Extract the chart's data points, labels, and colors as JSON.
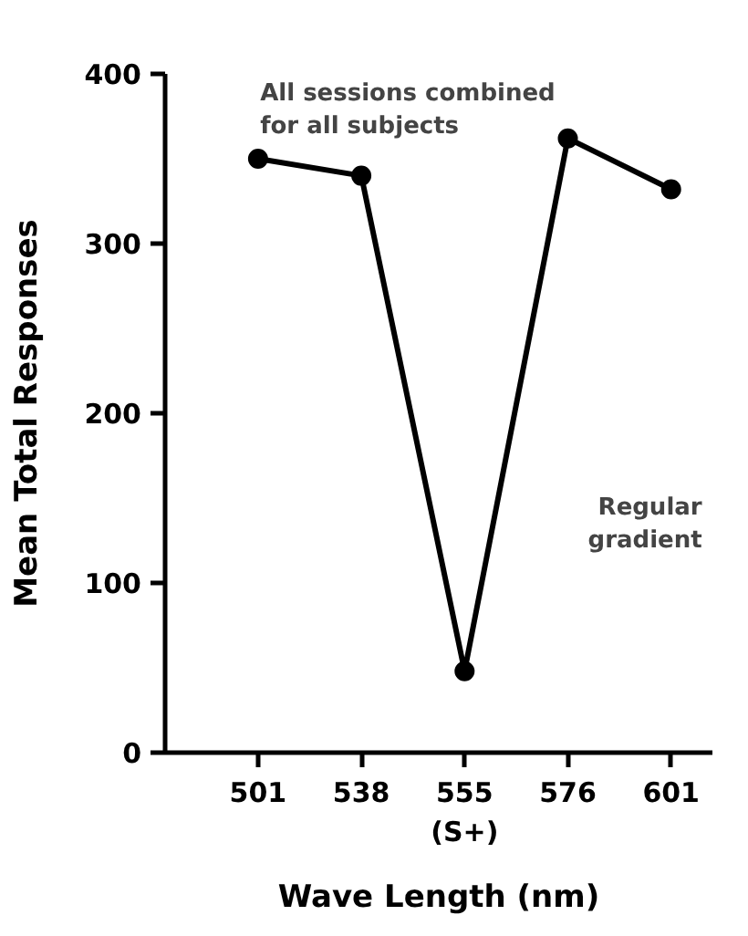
{
  "chart_data": {
    "type": "line",
    "xlabel": "Wave Length (nm)",
    "ylabel": "Mean Total Responses",
    "categories": [
      "501",
      "538",
      "555\n(S+)",
      "576",
      "601"
    ],
    "values": [
      350,
      340,
      48,
      362,
      332
    ],
    "color": "#000000",
    "ylim": [
      0,
      400
    ],
    "yticks": [
      0,
      100,
      200,
      300,
      400
    ],
    "marker": "circle",
    "line_style": "solid",
    "grid": false,
    "annotations": [
      "All sessions combined\nfor all subjects",
      "Regular\ngradient"
    ]
  }
}
